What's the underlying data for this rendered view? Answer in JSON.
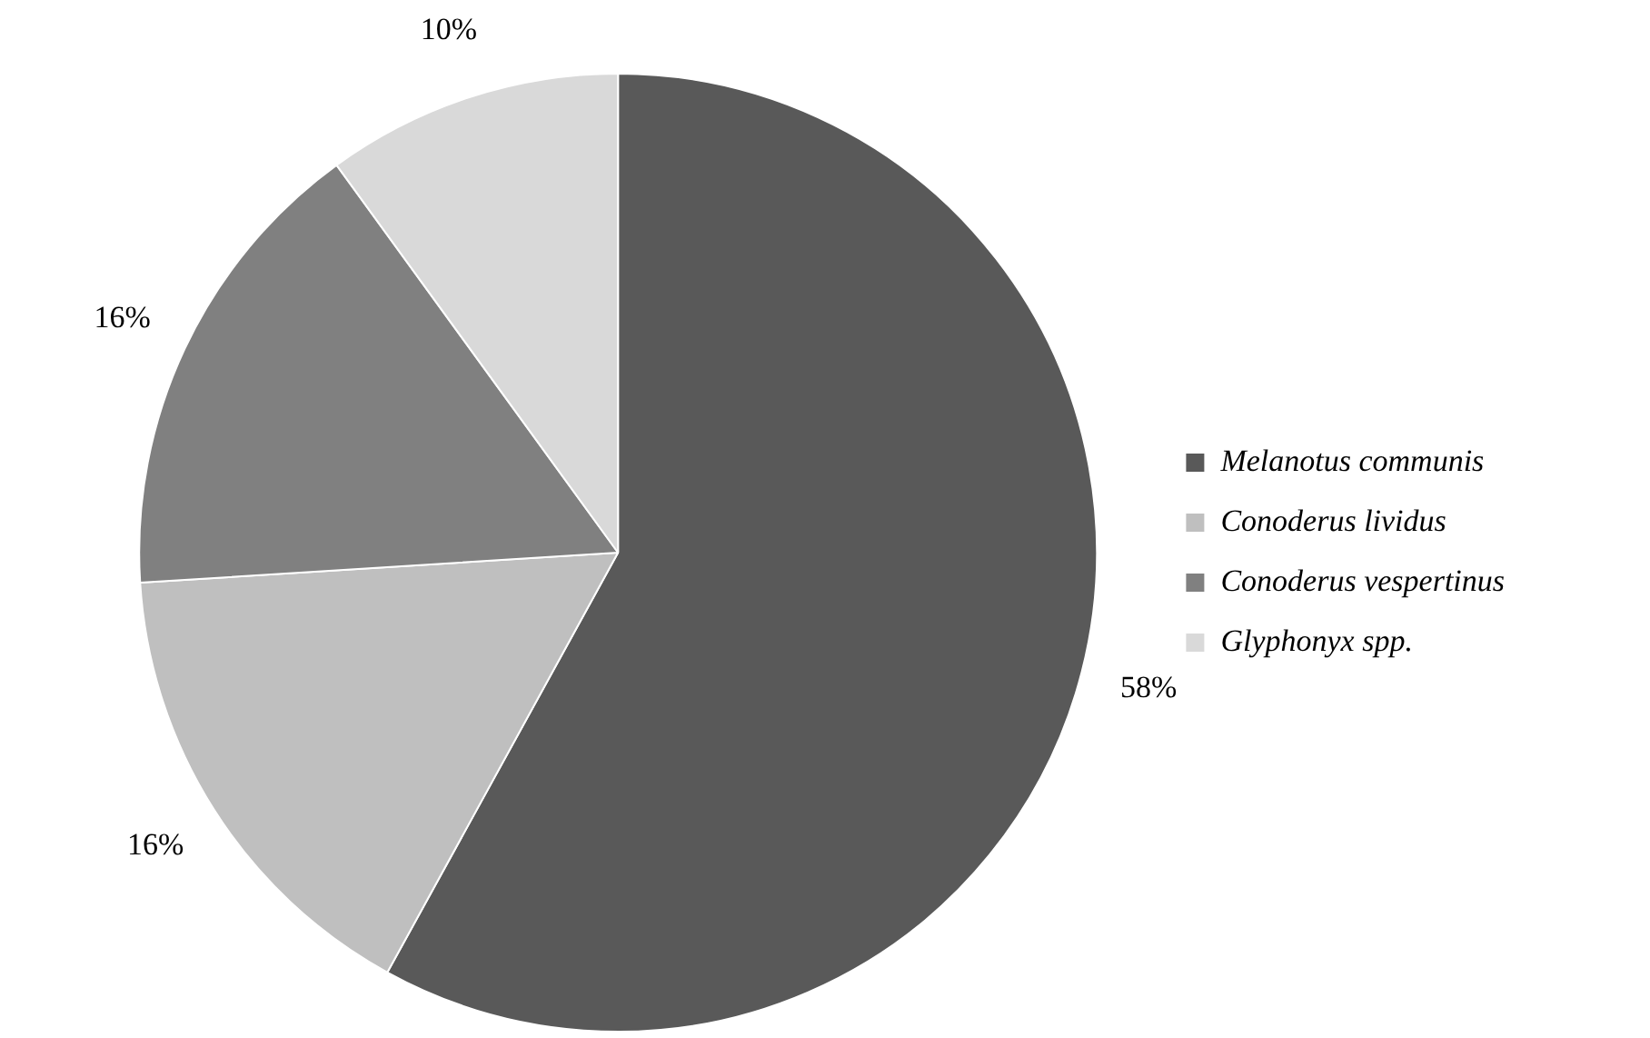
{
  "chart_data": {
    "type": "pie",
    "categories": [
      "Melanotus communis",
      "Conoderus lividus",
      "Conoderus vespertinus",
      "Glyphonyx spp."
    ],
    "values": [
      58,
      16,
      16,
      10
    ],
    "colors": [
      "#595959",
      "#bfbfbf",
      "#808080",
      "#d9d9d9"
    ],
    "value_labels": [
      "58%",
      "16%",
      "16%",
      "10%"
    ],
    "legend": "right"
  }
}
